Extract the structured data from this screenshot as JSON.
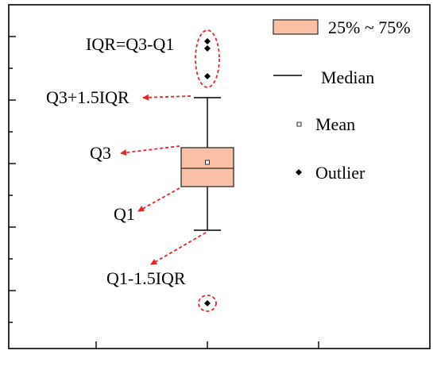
{
  "labels": {
    "iqr": "IQR=Q3-Q1",
    "upper_fence": "Q3+1.5IQR",
    "q3": "Q3",
    "q1": "Q1",
    "lower_fence": "Q1-1.5IQR"
  },
  "legend": {
    "box": "25% ~ 75%",
    "median": "Median",
    "mean": "Mean",
    "outlier": "Outlier"
  },
  "colors": {
    "box_fill": "#f9c0a5",
    "box_stroke": "#2d2d2d",
    "arrow": "#e8252a",
    "ink": "#000000"
  }
}
